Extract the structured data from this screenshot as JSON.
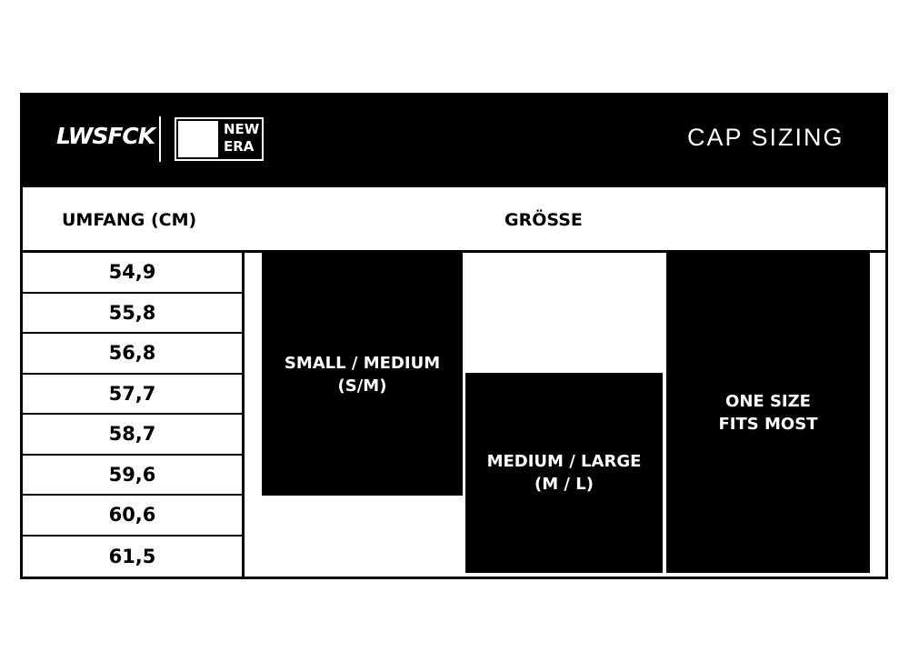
{
  "header": {
    "brand": "LWSFCK",
    "logo": [
      "NEW",
      "ERA"
    ],
    "title": "CAP SIZING"
  },
  "table": {
    "columns": [
      "UMFANG (CM)",
      "GRÖSSE"
    ],
    "rows": [
      "54,9",
      "55,8",
      "56,8",
      "57,7",
      "58,7",
      "59,6",
      "60,6",
      "61,5"
    ],
    "sizes": [
      [
        "SMALL / MEDIUM",
        "(S/M)"
      ],
      [
        "MEDIUM / LARGE",
        "(M / L)"
      ],
      [
        "ONE SIZE",
        "FITS MOST"
      ]
    ]
  }
}
